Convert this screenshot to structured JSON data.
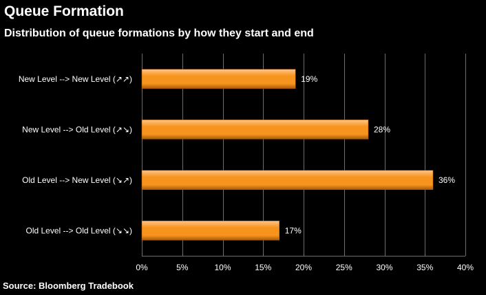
{
  "title": "Queue Formation",
  "subtitle": "Distribution of queue formations by how they start and end",
  "source": "Source: Bloomberg Tradebook",
  "colors": {
    "background": "#000000",
    "bar_light": "#FFC58A",
    "bar_mid": "#F7941D",
    "bar_dark": "#A85A0C",
    "grid": "#6e6e6e",
    "text": "#ffffff"
  },
  "chart_data": {
    "type": "bar",
    "orientation": "horizontal",
    "title": "Queue Formation",
    "subtitle": "Distribution of queue formations by how they start and end",
    "categories": [
      "New Level --> New Level (↗↗)",
      "New Level --> Old Level (↗↘)",
      "Old Level --> New Level (↘↗)",
      "Old Level --> Old Level (↘↘)"
    ],
    "values": [
      19,
      28,
      36,
      17
    ],
    "data_labels": [
      "19%",
      "28%",
      "36%",
      "17%"
    ],
    "xlim": [
      0,
      40
    ],
    "xticks": [
      0,
      5,
      10,
      15,
      20,
      25,
      30,
      35,
      40
    ],
    "xtick_labels": [
      "0%",
      "5%",
      "10%",
      "15%",
      "20%",
      "25%",
      "30%",
      "35%",
      "40%"
    ],
    "grid": true,
    "legend": "none"
  }
}
